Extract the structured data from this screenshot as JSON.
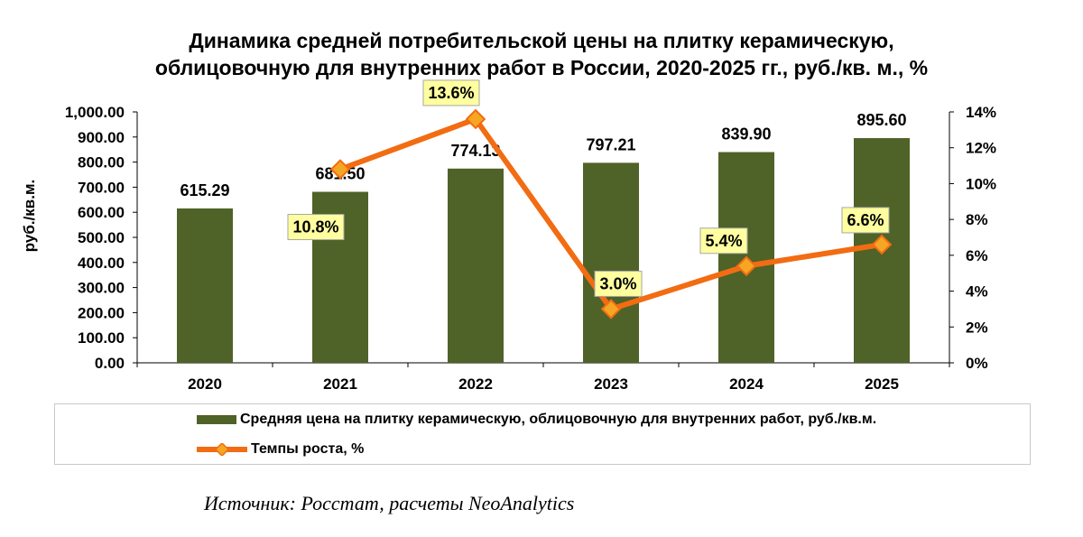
{
  "title_line1": "Динамика средней потребительской цены на плитку керамическую,",
  "title_line2": "облицовочную для внутренних работ в России, 2020-2025 гг., руб./кв. м., %",
  "source": "Источник: Росстат, расчеты NeoAnalytics",
  "colors": {
    "bar": "#4f6228",
    "line": "#f26c12",
    "marker_fill": "#f5a623",
    "label_bg": "#ffffa0",
    "label_border": "#a6a6a6"
  },
  "chart_data": {
    "type": "bar",
    "categories": [
      "2020",
      "2021",
      "2022",
      "2023",
      "2024",
      "2025"
    ],
    "ylabel": "руб./кв.м.",
    "ylim": [
      0,
      1000
    ],
    "yticks": [
      "0.00",
      "100.00",
      "200.00",
      "300.00",
      "400.00",
      "500.00",
      "600.00",
      "700.00",
      "800.00",
      "900.00",
      "1,000.00"
    ],
    "y2lim": [
      0,
      14
    ],
    "y2ticks": [
      "0%",
      "2%",
      "4%",
      "6%",
      "8%",
      "10%",
      "12%",
      "14%"
    ],
    "grid": false,
    "legend_position": "bottom",
    "series": [
      {
        "name": "Средняя цена на плитку керамическую, облицовочную для внутренних работ, руб./кв.м.",
        "type": "bar",
        "axis": "left",
        "values": [
          615.29,
          681.5,
          774.13,
          797.21,
          839.9,
          895.6
        ],
        "labels": [
          "615.29",
          "681.50",
          "774.13",
          "797.21",
          "839.90",
          "895.60"
        ]
      },
      {
        "name": "Темпы роста, %",
        "type": "line",
        "axis": "right",
        "x": [
          "2021",
          "2022",
          "2023",
          "2024",
          "2025"
        ],
        "values": [
          10.8,
          13.6,
          3.0,
          5.4,
          6.6
        ],
        "labels": [
          "10.8%",
          "13.6%",
          "3.0%",
          "5.4%",
          "6.6%"
        ]
      }
    ]
  }
}
